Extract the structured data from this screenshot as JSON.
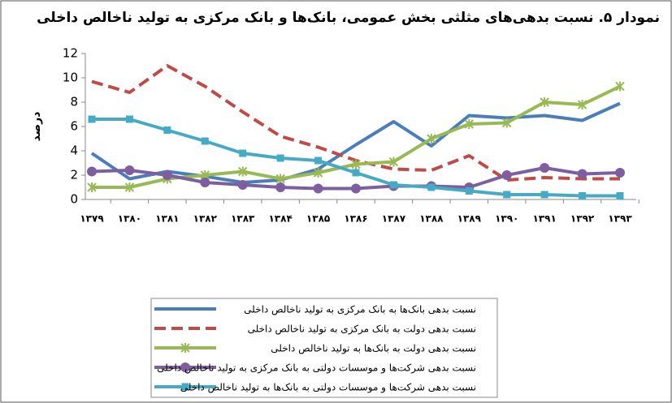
{
  "chart_data": {
    "type": "line",
    "title": "نمودار ۵. نسبت بدهی‌های مثلثی بخش عمومی، بانک‌ها و بانک مرکزی به تولید ناخالص داخلی",
    "ylabel": "درصد",
    "categories": [
      "۱۳۷۹",
      "۱۳۸۰",
      "۱۳۸۱",
      "۱۳۸۲",
      "۱۳۸۳",
      "۱۳۸۴",
      "۱۳۸۵",
      "۱۳۸۶",
      "۱۳۸۷",
      "۱۳۸۸",
      "۱۳۸۹",
      "۱۳۹۰",
      "۱۳۹۱",
      "۱۳۹۲",
      "۱۳۹۳"
    ],
    "ylim": [
      0,
      12
    ],
    "yticks": [
      0,
      2,
      4,
      6,
      8,
      10,
      12
    ],
    "grid": false,
    "series": [
      {
        "name": "نسبت بدهی بانک‌ها به بانک مرکزی به تولید ناخالص داخلی",
        "color": "#4a7ebb",
        "values": [
          3.8,
          1.7,
          2.3,
          1.9,
          1.4,
          1.6,
          2.5,
          4.5,
          6.4,
          4.4,
          6.9,
          6.7,
          6.9,
          6.5,
          7.9
        ]
      },
      {
        "name": "نسبت بدهی دولت به بانک مرکزی به تولید ناخالص داخلی",
        "color": "#be4b48",
        "dash": true,
        "values": [
          9.7,
          8.8,
          11.0,
          9.3,
          7.2,
          5.2,
          4.3,
          3.2,
          2.5,
          2.4,
          3.6,
          1.6,
          1.8,
          1.7,
          1.7
        ]
      },
      {
        "name": "نسبت بدهی دولت به بانک‌ها به تولید ناخالص داخلی",
        "color": "#98b954",
        "marker": "x",
        "values": [
          1.0,
          1.0,
          1.7,
          2.0,
          2.3,
          1.7,
          2.2,
          2.9,
          3.1,
          5.0,
          6.2,
          6.3,
          8.0,
          7.8,
          9.3
        ]
      },
      {
        "name": "نسبت بدهی شرکت‌ها و موسسات دولتی به بانک مرکزی به تولید ناخالص داخلی",
        "color": "#7d5fa0",
        "marker": "circle",
        "values": [
          2.3,
          2.4,
          2.0,
          1.4,
          1.2,
          1.0,
          0.9,
          0.9,
          1.1,
          1.1,
          1.0,
          2.0,
          2.6,
          2.1,
          2.2
        ]
      },
      {
        "name": "نسبت بدهی شرکت‌ها و موسسات دولتی به بانک‌ها به تولید ناخالص داخلی",
        "color": "#46aac5",
        "marker": "square",
        "values": [
          6.6,
          6.6,
          5.7,
          4.8,
          3.8,
          3.4,
          3.2,
          2.2,
          1.2,
          1.0,
          0.7,
          0.4,
          0.4,
          0.3,
          0.3
        ]
      }
    ]
  }
}
